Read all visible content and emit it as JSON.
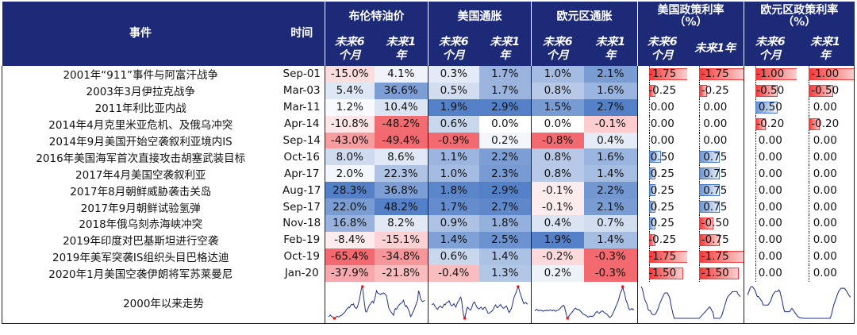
{
  "headers": {
    "event": "事件",
    "time": "时间",
    "groups": [
      "布伦特油价",
      "美国通胀",
      "欧元区通胀",
      "美国政策利率\n（%）",
      "欧元区政策利率\n（%）"
    ],
    "sub_6m": "未来6\n个月",
    "sub_1y": "未来1\n年",
    "sub_1y_inline": "未来1年"
  },
  "events": [
    {
      "name": "2001年“911”事件与阿富汗战争",
      "time": "Sep-01",
      "brent_6m": "-15.0%",
      "brent_1y": "4.1%",
      "us_6m": "0.3%",
      "us_1y": "1.7%",
      "ez_6m": "1.0%",
      "ez_1y": "2.1%",
      "usr_6m": "-1.75",
      "usr_1y": "-1.75",
      "ezr_6m": "-1.00",
      "ezr_1y": "-1.00"
    },
    {
      "name": "2003年3月伊拉克战争",
      "time": "Mar-03",
      "brent_6m": "5.4%",
      "brent_1y": "36.6%",
      "us_6m": "0.5%",
      "us_1y": "1.7%",
      "ez_6m": "0.8%",
      "ez_1y": "1.6%",
      "usr_6m": "-0.25",
      "usr_1y": "-0.25",
      "ezr_6m": "-0.50",
      "ezr_1y": "-0.50"
    },
    {
      "name": "2011年利比亚内战",
      "time": "Mar-11",
      "brent_6m": "1.2%",
      "brent_1y": "10.4%",
      "us_6m": "1.9%",
      "us_1y": "2.9%",
      "ez_6m": "1.5%",
      "ez_1y": "2.7%",
      "usr_6m": "0.00",
      "usr_1y": "0.00",
      "ezr_6m": "0.50",
      "ezr_1y": "0.00"
    },
    {
      "name": "2014年4月克里米亚危机、及俄乌冲突",
      "time": "Apr-14",
      "brent_6m": "-10.8%",
      "brent_1y": "-48.2%",
      "us_6m": "0.6%",
      "us_1y": "0.0%",
      "ez_6m": "0.0%",
      "ez_1y": "-0.1%",
      "usr_6m": "0.00",
      "usr_1y": "0.00",
      "ezr_6m": "-0.20",
      "ezr_1y": "-0.20"
    },
    {
      "name": "2014年9月美国开始空袭叙利亚境内IS",
      "time": "Sep-14",
      "brent_6m": "-43.0%",
      "brent_1y": "-49.4%",
      "us_6m": "-0.9%",
      "us_1y": "0.2%",
      "ez_6m": "-0.8%",
      "ez_1y": "0.4%",
      "usr_6m": "0.00",
      "usr_1y": "0.00",
      "ezr_6m": "0.00",
      "ezr_1y": "0.00"
    },
    {
      "name": "2016年美国海军首次直接攻击胡塞武装目标",
      "time": "Oct-16",
      "brent_6m": "8.0%",
      "brent_1y": "8.6%",
      "us_6m": "1.1%",
      "us_1y": "2.2%",
      "ez_6m": "0.8%",
      "ez_1y": "1.6%",
      "usr_6m": "0.50",
      "usr_1y": "0.75",
      "ezr_6m": "0.00",
      "ezr_1y": "0.00"
    },
    {
      "name": "2017年4月美国空袭叙利亚",
      "time": "Apr-17",
      "brent_6m": "2.0%",
      "brent_1y": "22.3%",
      "us_6m": "1.0%",
      "us_1y": "2.3%",
      "ez_6m": "0.8%",
      "ez_1y": "1.4%",
      "usr_6m": "0.25",
      "usr_1y": "0.75",
      "ezr_6m": "0.00",
      "ezr_1y": "0.00"
    },
    {
      "name": "2017年8月朝鲜威胁袭击关岛",
      "time": "Aug-17",
      "brent_6m": "28.3%",
      "brent_1y": "36.8%",
      "us_6m": "1.8%",
      "us_1y": "2.9%",
      "ez_6m": "-0.1%",
      "ez_1y": "2.2%",
      "usr_6m": "0.25",
      "usr_1y": "0.75",
      "ezr_6m": "0.00",
      "ezr_1y": "0.00"
    },
    {
      "name": "2017年9月朝鲜试验氢弹",
      "time": "Sep-17",
      "brent_6m": "22.0%",
      "brent_1y": "48.2%",
      "us_6m": "1.7%",
      "us_1y": "2.7%",
      "ez_6m": "-0.1%",
      "ez_1y": "2.1%",
      "usr_6m": "0.25",
      "usr_1y": "0.75",
      "ezr_6m": "0.00",
      "ezr_1y": "0.00"
    },
    {
      "name": "2018年俄乌刻赤海峡冲突",
      "time": "Nov-18",
      "brent_6m": "16.8%",
      "brent_1y": "8.2%",
      "us_6m": "0.9%",
      "us_1y": "1.8%",
      "ez_6m": "0.4%",
      "ez_1y": "0.7%",
      "usr_6m": "0.25",
      "usr_1y": "-0.50",
      "ezr_6m": "0.00",
      "ezr_1y": "0.00"
    },
    {
      "name": "2019年印度对巴基斯坦进行空袭",
      "time": "Feb-19",
      "brent_6m": "-8.4%",
      "brent_1y": "-15.1%",
      "us_6m": "1.4%",
      "us_1y": "2.5%",
      "ez_6m": "1.9%",
      "ez_1y": "1.4%",
      "usr_6m": "-0.25",
      "usr_1y": "-0.75",
      "ezr_6m": "0.00",
      "ezr_1y": "0.00"
    },
    {
      "name": "2019年美军突袭IS组织头目巴格达迪",
      "time": "Oct-19",
      "brent_6m": "-65.4%",
      "brent_1y": "-34.8%",
      "us_6m": "0.6%",
      "us_1y": "1.4%",
      "ez_6m": "-0.2%",
      "ez_1y": "-0.3%",
      "usr_6m": "-1.75",
      "usr_1y": "-1.75",
      "ezr_6m": "0.00",
      "ezr_1y": "0.00"
    },
    {
      "name": "2020年1月美国空袭伊朗将军苏莱曼尼",
      "time": "Jan-20",
      "brent_6m": "-37.9%",
      "brent_1y": "-21.8%",
      "us_6m": "-0.4%",
      "us_1y": "1.3%",
      "ez_6m": "0.2%",
      "ez_1y": "-0.3%",
      "usr_6m": "-1.50",
      "usr_1y": "-1.50",
      "ezr_6m": "0.00",
      "ezr_1y": "0.00"
    }
  ],
  "trend_label": "2000年以来走势",
  "colors": {
    "header_bg": "#1d2a78",
    "positive_strong": "#4a79c4",
    "negative_strong": "#f0595f",
    "bar_negative": "#f23b3b",
    "bar_positive": "#a7c3e6",
    "sparkline": "#1f2f8f",
    "marker": "#ff0000"
  },
  "chart_data": {
    "type": "table",
    "columns": [
      "事件",
      "时间",
      "布伦特油价 未来6个月",
      "布伦特油价 未来1年",
      "美国通胀 未来6个月",
      "美国通胀 未来1年",
      "欧元区通胀 未来6个月",
      "欧元区通胀 未来1年",
      "美国政策利率（%） 未来6个月",
      "美国政策利率（%） 未来1年",
      "欧元区政策利率（%） 未来6个月",
      "欧元区政策利率（%） 未来1年"
    ],
    "heatmap_columns": [
      "brent_6m",
      "brent_1y",
      "us_6m",
      "us_1y",
      "ez_6m",
      "ez_1y"
    ],
    "bar_columns": [
      "usr_6m",
      "usr_1y",
      "ezr_6m",
      "ezr_1y"
    ],
    "sparklines": {
      "brent": [
        25,
        28,
        31,
        26,
        24,
        20,
        19,
        21,
        25,
        27,
        24,
        26,
        29,
        30,
        33,
        37,
        40,
        45,
        52,
        55,
        60,
        58,
        65,
        70,
        68,
        72,
        62,
        58,
        55,
        62,
        75,
        90,
        110,
        130,
        135,
        100,
        70,
        45,
        42,
        50,
        60,
        68,
        72,
        78,
        82,
        75,
        88,
        102,
        120,
        112,
        110,
        108,
        106,
        110,
        108,
        112,
        110,
        105,
        100,
        80,
        60,
        50,
        45,
        40,
        35,
        30,
        48,
        55,
        52,
        60,
        65,
        70,
        72,
        75,
        80,
        85,
        70,
        62,
        65,
        58,
        50,
        40,
        25,
        30,
        40,
        45,
        55,
        65,
        75,
        85,
        120,
        110,
        90,
        85,
        80,
        82,
        85
      ],
      "us_cpi": [
        2.8,
        3.0,
        3.2,
        2.6,
        2.0,
        1.6,
        1.2,
        1.8,
        2.2,
        2.4,
        2.0,
        1.8,
        2.5,
        3.0,
        2.8,
        3.4,
        3.6,
        3.8,
        4.2,
        3.4,
        2.6,
        2.5,
        2.8,
        3.2,
        2.4,
        2.0,
        3.0,
        3.8,
        4.2,
        5.0,
        5.4,
        4.0,
        1.0,
        -0.8,
        -1.8,
        -0.5,
        1.2,
        2.0,
        1.6,
        1.2,
        1.0,
        1.5,
        2.6,
        3.4,
        3.8,
        3.2,
        2.4,
        1.8,
        1.6,
        1.4,
        1.8,
        2.0,
        1.5,
        1.2,
        1.8,
        2.0,
        1.4,
        0.8,
        0.0,
        -0.1,
        0.2,
        0.4,
        0.6,
        1.0,
        1.6,
        2.4,
        2.8,
        2.0,
        1.8,
        2.2,
        2.6,
        2.9,
        2.3,
        1.9,
        1.6,
        1.8,
        2.2,
        2.4,
        1.7,
        0.6,
        0.2,
        0.8,
        1.4,
        2.6,
        4.0,
        5.4,
        6.2,
        7.0,
        8.0,
        9.0,
        8.2,
        7.0,
        6.0,
        5.0,
        4.0,
        3.2,
        3.4,
        3.6,
        3.2,
        3.0
      ],
      "ez_cpi": [
        2.0,
        2.4,
        2.6,
        2.2,
        2.0,
        2.3,
        2.2,
        2.1,
        1.9,
        2.0,
        2.2,
        2.1,
        2.3,
        2.0,
        2.2,
        2.4,
        2.2,
        2.0,
        2.3,
        2.2,
        1.9,
        2.0,
        2.2,
        2.4,
        2.6,
        3.0,
        3.4,
        3.8,
        4.0,
        3.4,
        2.0,
        0.4,
        -0.6,
        0.0,
        0.6,
        1.0,
        1.4,
        1.8,
        2.4,
        2.8,
        3.0,
        2.6,
        2.4,
        2.6,
        2.2,
        1.8,
        1.4,
        1.0,
        0.8,
        0.6,
        0.4,
        0.2,
        -0.2,
        0.0,
        0.2,
        0.1,
        0.0,
        0.2,
        0.4,
        1.2,
        1.6,
        1.8,
        1.4,
        1.2,
        1.5,
        1.9,
        2.0,
        1.8,
        1.4,
        1.2,
        1.0,
        0.6,
        0.3,
        -0.3,
        -0.2,
        0.2,
        0.8,
        1.6,
        2.4,
        3.4,
        4.2,
        5.0,
        6.0,
        7.5,
        8.6,
        9.2,
        10.6,
        9.0,
        8.0,
        6.0,
        5.2,
        4.0,
        2.8,
        2.4,
        2.6,
        2.9,
        2.4,
        2.6
      ],
      "us_rate": [
        6.5,
        6.0,
        5.0,
        4.0,
        3.5,
        3.0,
        2.0,
        1.75,
        1.75,
        1.25,
        1.0,
        1.0,
        1.0,
        1.25,
        1.75,
        2.25,
        3.0,
        3.5,
        4.0,
        4.5,
        5.0,
        5.25,
        5.25,
        5.25,
        4.75,
        4.25,
        3.0,
        2.0,
        1.0,
        0.25,
        0.25,
        0.25,
        0.25,
        0.25,
        0.25,
        0.25,
        0.25,
        0.25,
        0.25,
        0.25,
        0.25,
        0.25,
        0.25,
        0.25,
        0.25,
        0.25,
        0.25,
        0.25,
        0.25,
        0.25,
        0.25,
        0.25,
        0.5,
        0.75,
        1.0,
        1.25,
        1.5,
        1.75,
        2.0,
        2.25,
        2.5,
        2.25,
        1.75,
        1.5,
        0.25,
        0.25,
        0.25,
        0.25,
        0.25,
        0.25,
        0.5,
        1.0,
        1.75,
        2.5,
        3.25,
        4.0,
        4.5,
        4.75,
        5.0,
        5.25,
        5.5,
        5.5,
        5.5,
        5.5,
        5.5,
        5.0,
        4.75,
        4.5
      ],
      "ez_rate": [
        3.5,
        4.0,
        4.5,
        4.75,
        4.75,
        4.5,
        4.25,
        3.75,
        3.25,
        3.25,
        3.0,
        2.75,
        2.5,
        2.0,
        2.0,
        2.0,
        2.0,
        2.0,
        2.25,
        2.5,
        3.0,
        3.5,
        3.75,
        4.0,
        4.0,
        4.0,
        4.25,
        4.0,
        3.25,
        2.5,
        1.5,
        1.0,
        1.0,
        1.0,
        1.0,
        1.0,
        1.25,
        1.5,
        1.25,
        1.0,
        0.75,
        0.5,
        0.25,
        0.15,
        0.05,
        0.05,
        0.05,
        0.0,
        0.0,
        0.0,
        0.0,
        0.0,
        0.0,
        0.0,
        0.0,
        0.0,
        0.0,
        0.0,
        0.0,
        0.0,
        0.0,
        0.0,
        0.0,
        0.0,
        0.0,
        0.0,
        0.0,
        0.0,
        0.0,
        0.0,
        0.5,
        1.25,
        2.0,
        2.5,
        3.0,
        3.5,
        4.0,
        4.25,
        4.5,
        4.5,
        4.5,
        4.5,
        4.25,
        4.0,
        3.65,
        3.4,
        3.15
      ]
    }
  }
}
